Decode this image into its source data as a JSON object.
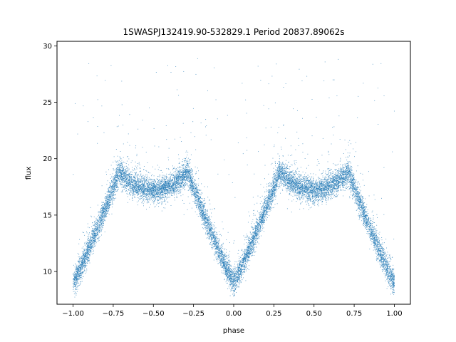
{
  "chart_data": {
    "type": "scatter",
    "title": "1SWASPJ132419.90-532829.1 Period 20837.89062s",
    "xlabel": "phase",
    "ylabel": "flux",
    "xlim": [
      -1.1,
      1.1
    ],
    "ylim": [
      7.1,
      30.4
    ],
    "x_ticks": [
      -1.0,
      -0.75,
      -0.5,
      -0.25,
      0.0,
      0.25,
      0.5,
      0.75,
      1.0
    ],
    "x_tick_labels": [
      "−1.00",
      "−0.75",
      "−0.50",
      "−0.25",
      "0.00",
      "0.25",
      "0.50",
      "0.75",
      "1.00"
    ],
    "y_ticks": [
      10,
      15,
      20,
      25,
      30
    ],
    "y_tick_labels": [
      "10",
      "15",
      "20",
      "25",
      "30"
    ],
    "grid": false,
    "series": [
      {
        "color": "#1f77b4",
        "baseline_flux": 18.9,
        "primary_eclipse": {
          "phases": [
            -1.0,
            0.0,
            1.0
          ],
          "min_flux": 9.0,
          "half_width": 0.29
        },
        "secondary_eclipse": {
          "phases": [
            -0.5,
            0.5
          ],
          "min_flux": 17.2,
          "half_width": 0.22
        },
        "phase_range": [
          -1.0,
          1.0
        ],
        "scatter_sigma": 0.55,
        "outlier_range": [
          15.0,
          29.0
        ]
      }
    ]
  }
}
